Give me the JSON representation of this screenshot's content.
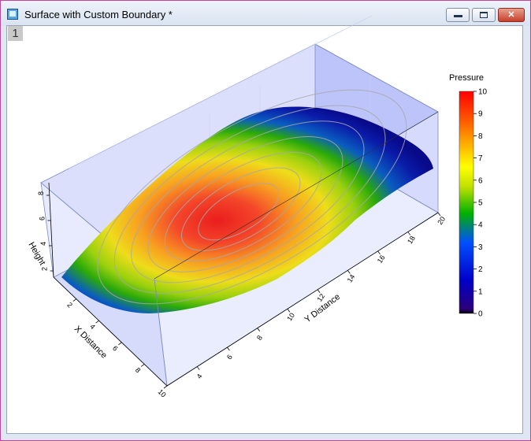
{
  "window": {
    "title": "Surface with Custom Boundary *",
    "layer_label": "1",
    "controls": {
      "minimize": "minimize",
      "maximize": "maximize",
      "close": "close"
    }
  },
  "chart_data": {
    "type": "surface",
    "title": "",
    "xlabel": "X Distance",
    "ylabel": "Y Distance",
    "zlabel": "Height",
    "xlim": [
      0,
      10
    ],
    "ylim": [
      2,
      20
    ],
    "zlim": [
      1.5,
      9
    ],
    "x_ticks": [
      2,
      4,
      6,
      8,
      10
    ],
    "y_ticks": [
      4,
      6,
      8,
      10,
      12,
      14,
      16,
      18,
      20
    ],
    "z_ticks": [
      2,
      4,
      6,
      8
    ],
    "colormap": {
      "title": "Pressure",
      "min": 0,
      "max": 10,
      "ticks": [
        0,
        1,
        2,
        3,
        4,
        5,
        6,
        7,
        8,
        9,
        10
      ],
      "stops": [
        "#000000",
        "#2b007a",
        "#0000c8",
        "#0050ff",
        "#00c000",
        "#c0e000",
        "#ffff00",
        "#ffb000",
        "#ff6000",
        "#ff1a00",
        "#ff0000"
      ]
    },
    "contours": [
      3,
      4,
      5,
      6,
      7,
      8,
      9
    ],
    "wall_color": "#7f8cf5",
    "grid": true
  }
}
